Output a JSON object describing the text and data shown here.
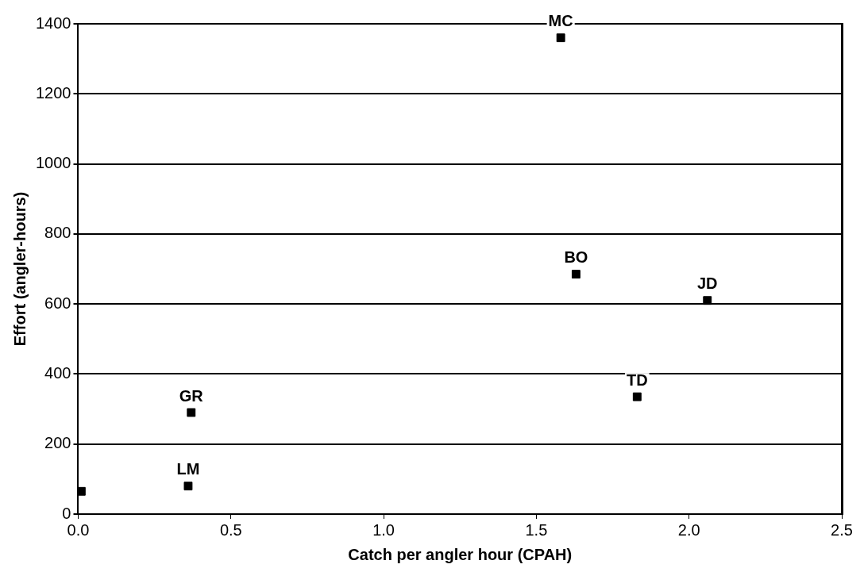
{
  "chart_data": {
    "type": "scatter",
    "xlabel": "Catch per angler hour (CPAH)",
    "ylabel": "Effort (angler-hours)",
    "x": [
      0.01,
      0.36,
      0.37,
      1.58,
      1.63,
      2.06,
      1.83
    ],
    "series": [
      {
        "color": "#000000",
        "values": [
          65,
          80,
          290,
          1360,
          685,
          610,
          335
        ]
      }
    ],
    "xlim": [
      0,
      2.5
    ],
    "xticks": [
      {
        "value": 0,
        "label": "0.0"
      },
      0.5,
      {
        "value": 1,
        "label": "1.0"
      },
      1.5,
      {
        "value": 2,
        "label": "2.0"
      },
      2.5
    ],
    "ylim": [
      0,
      1400
    ],
    "yticks": [
      0,
      200,
      400,
      600,
      800,
      1000,
      1200,
      1400
    ],
    "grid": "y",
    "legend": false,
    "marker": "square",
    "annotations": [
      {
        "text": "LM",
        "x": 0.36,
        "y": 80
      },
      {
        "text": "GR",
        "x": 0.37,
        "y": 290
      },
      {
        "text": "MC",
        "x": 1.58,
        "y": 1360
      },
      {
        "text": "BO",
        "x": 1.63,
        "y": 685
      },
      {
        "text": "JD",
        "x": 2.06,
        "y": 610
      },
      {
        "text": "TD",
        "x": 1.83,
        "y": 335
      }
    ]
  }
}
